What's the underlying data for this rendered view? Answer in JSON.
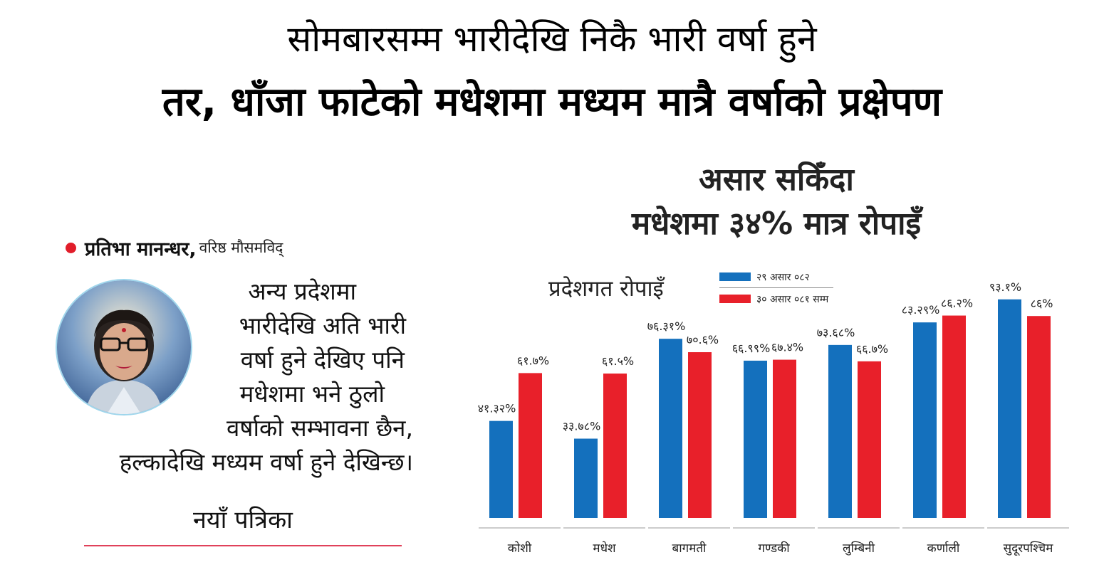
{
  "headline": {
    "line1": "सोमबारसम्म भारीदेखि निकै भारी वर्षा हुने",
    "line2": "तर, धाँजा फाटेको मधेशमा मध्यम मात्रै वर्षाको प्रक्षेपण"
  },
  "quote": {
    "author": "प्रतिभा मानन्धर,",
    "role": "वरिष्ठ मौसमविद्",
    "lines": [
      "अन्य प्रदेशमा",
      "भारीदेखि अति भारी",
      "वर्षा हुने देखिए पनि",
      "मधेशमा भने ठुलो",
      "वर्षाको सम्भावना छैन,",
      "हल्कादेखि मध्यम वर्षा हुने देखिन्छ।"
    ],
    "source": "नयाँ पत्रिका"
  },
  "chart_heading": {
    "line1": "असार सकिँदा",
    "line2": "मधेशमा ३४% मात्र रोपाइँ"
  },
  "chart_data": {
    "type": "bar",
    "title": "प्रदेशगत रोपाइँ",
    "categories": [
      "कोशी",
      "मधेश",
      "बागमती",
      "गण्डकी",
      "लुम्बिनी",
      "कर्णाली",
      "सुदूरपश्चिम"
    ],
    "series": [
      {
        "name": "२९ असार ०८२",
        "color": "#1470bd",
        "values": [
          41.32,
          33.78,
          76.31,
          66.99,
          73.68,
          83.29,
          93.1
        ],
        "labels": [
          "४१.३२%",
          "३३.७८%",
          "७६.३१%",
          "६६.९९%",
          "७३.६८%",
          "८३.२९%",
          "९३.१%"
        ]
      },
      {
        "name": "३० असार ०८१ सम्म",
        "color": "#e8202a",
        "values": [
          61.7,
          61.5,
          70.6,
          67.4,
          66.7,
          86.2,
          86
        ],
        "labels": [
          "६१.७%",
          "६१.५%",
          "७०.६%",
          "६७.४%",
          "६६.७%",
          "८६.२%",
          "८६%"
        ]
      }
    ],
    "ylim": [
      0,
      100
    ],
    "grid": false,
    "legend_position": "top"
  }
}
